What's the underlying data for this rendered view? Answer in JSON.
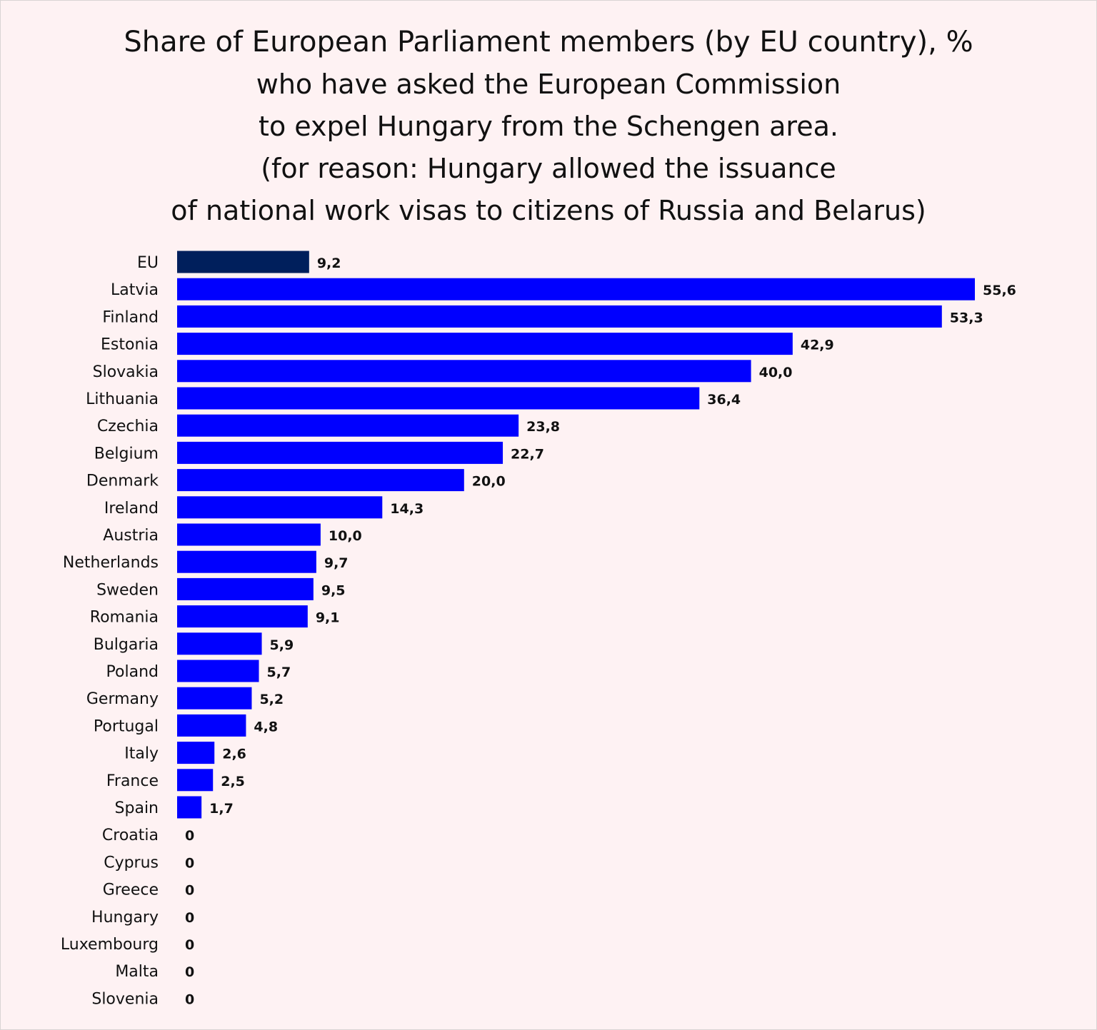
{
  "chart_data": {
    "type": "bar",
    "orientation": "horizontal",
    "title_lines": [
      "Share of European Parliament members (by EU country), %",
      "who have asked the European Commission",
      "to expel Hungary from the Schengen area.",
      "(for reason: Hungary allowed the issuance",
      "of national work visas to citizens of Russia and Belarus)"
    ],
    "categories": [
      "EU",
      "Latvia",
      "Finland",
      "Estonia",
      "Slovakia",
      "Lithuania",
      "Czechia",
      "Belgium",
      "Denmark",
      "Ireland",
      "Austria",
      "Netherlands",
      "Sweden",
      "Romania",
      "Bulgaria",
      "Poland",
      "Germany",
      "Portugal",
      "Italy",
      "France",
      "Spain",
      "Croatia",
      "Cyprus",
      "Greece",
      "Hungary",
      "Luxembourg",
      "Malta",
      "Slovenia"
    ],
    "values": [
      9.2,
      55.6,
      53.3,
      42.9,
      40.0,
      36.4,
      23.8,
      22.7,
      20.0,
      14.3,
      10.0,
      9.7,
      9.5,
      9.1,
      5.9,
      5.7,
      5.2,
      4.8,
      2.6,
      2.5,
      1.7,
      0,
      0,
      0,
      0,
      0,
      0,
      0
    ],
    "value_labels": [
      "9,2",
      "55,6",
      "53,3",
      "42,9",
      "40,0",
      "36,4",
      "23,8",
      "22,7",
      "20,0",
      "14,3",
      "10,0",
      "9,7",
      "9,5",
      "9,1",
      "5,9",
      "5,7",
      "5,2",
      "4,8",
      "2,6",
      "2,5",
      "1,7",
      "0",
      "0",
      "0",
      "0",
      "0",
      "0",
      "0"
    ],
    "xlim": [
      0,
      55.6
    ],
    "grid": false,
    "legend": "none",
    "colors": {
      "highlight": "#001f5c",
      "bar": "#0000ff",
      "background": "#fef2f3"
    },
    "highlight_index": 0
  }
}
